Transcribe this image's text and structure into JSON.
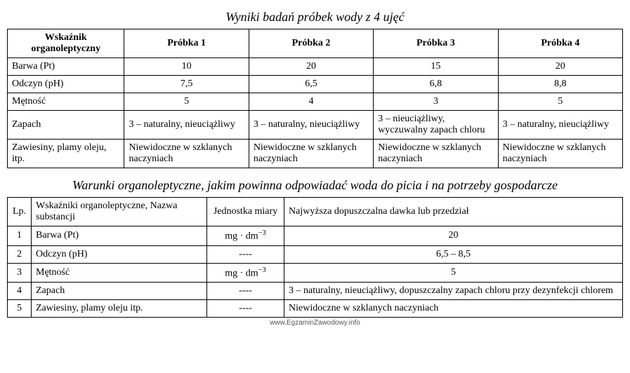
{
  "table1": {
    "title": "Wyniki badań próbek wody z 4 ujęć",
    "headers": [
      "Wskaźnik organoleptyczny",
      "Próbka 1",
      "Próbka 2",
      "Próbka 3",
      "Próbka 4"
    ],
    "rows": [
      {
        "label": "Barwa (Pt)",
        "cells": [
          "10",
          "20",
          "15",
          "20"
        ],
        "align": "center"
      },
      {
        "label": "Odczyn (pH)",
        "cells": [
          "7,5",
          "6,5",
          "6,8",
          "8,8"
        ],
        "align": "center"
      },
      {
        "label": "Mętność",
        "cells": [
          "5",
          "4",
          "3",
          "5"
        ],
        "align": "center"
      },
      {
        "label": "Zapach",
        "cells": [
          "3 – naturalny, nieuciążliwy",
          "3 – naturalny, nieuciążliwy",
          "3 – nieuciążliwy, wyczuwalny zapach chloru",
          "3 – naturalny, nieuciążliwy"
        ],
        "align": "left"
      },
      {
        "label": "Zawiesiny, plamy oleju, itp.",
        "cells": [
          "Niewidoczne w szklanych naczyniach",
          "Niewidoczne w szklanych naczyniach",
          "Niewidoczne w szklanych naczyniach",
          "Niewidoczne w szklanych naczyniach"
        ],
        "align": "left"
      }
    ]
  },
  "table2": {
    "title": "Warunki organoleptyczne, jakim powinna odpowiadać woda do picia i na potrzeby gospodarcze",
    "headers": [
      "Lp.",
      "Wskaźniki organoleptyczne, Nazwa substancji",
      "Jednostka miary",
      "Najwyższa dopuszczalna dawka lub przedział"
    ],
    "rows": [
      {
        "lp": "1",
        "name": "Barwa (Pt)",
        "unit_html": "mg · dm<sup>−3</sup>",
        "val": "20",
        "valAlign": "center"
      },
      {
        "lp": "2",
        "name": "Odczyn (pH)",
        "unit_html": "----",
        "val": "6,5 – 8,5",
        "valAlign": "center"
      },
      {
        "lp": "3",
        "name": "Mętność",
        "unit_html": "mg · dm<sup>−3</sup>",
        "val": "5",
        "valAlign": "center"
      },
      {
        "lp": "4",
        "name": "Zapach",
        "unit_html": "----",
        "val": "3 – naturalny, nieuciążliwy, dopuszczalny zapach chloru przy dezynfekcji chlorem",
        "valAlign": "left"
      },
      {
        "lp": "5",
        "name": "Zawiesiny, plamy oleju itp.",
        "unit_html": "----",
        "val": "Niewidoczne w szklanych naczyniach",
        "valAlign": "left"
      }
    ]
  },
  "footer": "www.EgzaminZawodowy.info",
  "style": {
    "background_color": "#ffffff",
    "text_color": "#000000",
    "border_color": "#000000",
    "title_font_style": "italic",
    "title_font_size_pt": 14,
    "body_font_size_pt": 11,
    "font_family": "Times New Roman"
  }
}
